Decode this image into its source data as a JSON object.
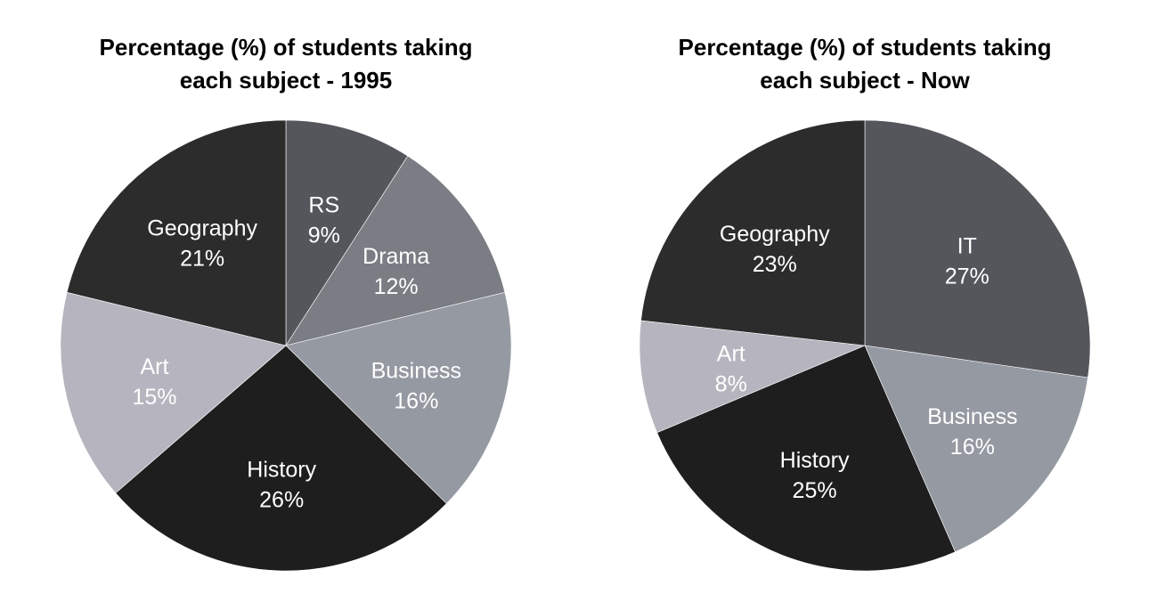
{
  "chart_data": [
    {
      "type": "pie",
      "title_lines": [
        "Percentage (%) of students taking",
        "each subject - 1995"
      ],
      "slices": [
        {
          "label": "RS",
          "value": 9,
          "value_label": "9%",
          "color": "#54565c"
        },
        {
          "label": "Drama",
          "value": 12,
          "value_label": "12%",
          "color": "#7a7d83"
        },
        {
          "label": "Business",
          "value": 16,
          "value_label": "16%",
          "color": "#9599a2"
        },
        {
          "label": "History",
          "value": 26,
          "value_label": "26%",
          "color": "#1e1e1e"
        },
        {
          "label": "Art",
          "value": 15,
          "value_label": "15%",
          "color": "#b6b5bf"
        },
        {
          "label": "Geography",
          "value": 21,
          "value_label": "21%",
          "color": "#2c2c2c"
        }
      ]
    },
    {
      "type": "pie",
      "title_lines": [
        "Percentage (%) of students taking",
        "each subject - Now"
      ],
      "slices": [
        {
          "label": "IT",
          "value": 27,
          "value_label": "27%",
          "color": "#54565c"
        },
        {
          "label": "Business",
          "value": 16,
          "value_label": "16%",
          "color": "#9599a2"
        },
        {
          "label": "History",
          "value": 25,
          "value_label": "25%",
          "color": "#1e1e1e"
        },
        {
          "label": "Art",
          "value": 8,
          "value_label": "8%",
          "color": "#b6b5bf"
        },
        {
          "label": "Geography",
          "value": 23,
          "value_label": "23%",
          "color": "#2c2c2c"
        }
      ]
    }
  ]
}
